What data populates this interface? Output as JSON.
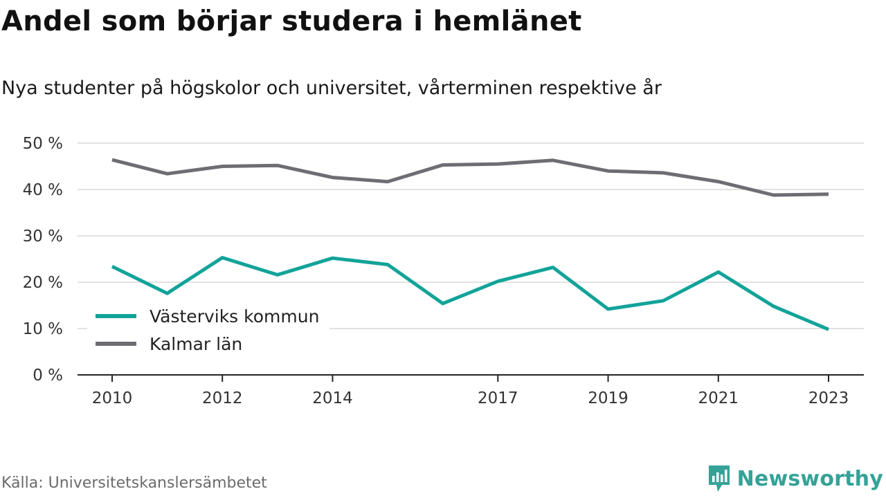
{
  "header": {
    "title": "Andel som börjar studera i hemlänet",
    "subtitle": "Nya studenter på högskolor och universitet, vårterminen respektive år"
  },
  "footer": {
    "source": "Källa: Universitetskanslersämbetet",
    "brand": "Newsworthy"
  },
  "colors": {
    "series_teal": "#12a399",
    "series_gray": "#6e6d73",
    "gridline": "#d9d9d9",
    "axis": "#222222",
    "brand": "#35a298"
  },
  "chart_data": {
    "type": "line",
    "title": "Andel som börjar studera i hemlänet",
    "subtitle": "Nya studenter på högskolor och universitet, vårterminen respektive år",
    "x": [
      2010,
      2011,
      2012,
      2013,
      2014,
      2015,
      2016,
      2017,
      2018,
      2019,
      2020,
      2021,
      2022,
      2023
    ],
    "x_tick_labels": [
      "2010",
      "2012",
      "2014",
      "2017",
      "2019",
      "2021",
      "2023"
    ],
    "y_ticks": [
      0,
      10,
      20,
      30,
      40,
      50
    ],
    "y_tick_labels": [
      "0 %",
      "10 %",
      "20 %",
      "30 %",
      "40 %",
      "50 %"
    ],
    "ylim": [
      0,
      50
    ],
    "grid": true,
    "legend_position": "bottom-left",
    "series": [
      {
        "name": "Västerviks kommun",
        "color": "#12a399",
        "values": [
          23.4,
          17.6,
          25.3,
          21.6,
          25.2,
          23.8,
          15.4,
          20.2,
          23.2,
          14.2,
          16.0,
          22.2,
          14.8,
          9.8
        ]
      },
      {
        "name": "Kalmar län",
        "color": "#6e6d73",
        "values": [
          46.4,
          43.4,
          45.0,
          45.2,
          42.6,
          41.7,
          45.3,
          45.5,
          46.3,
          44.0,
          43.6,
          41.7,
          38.8,
          39.0
        ]
      }
    ]
  }
}
